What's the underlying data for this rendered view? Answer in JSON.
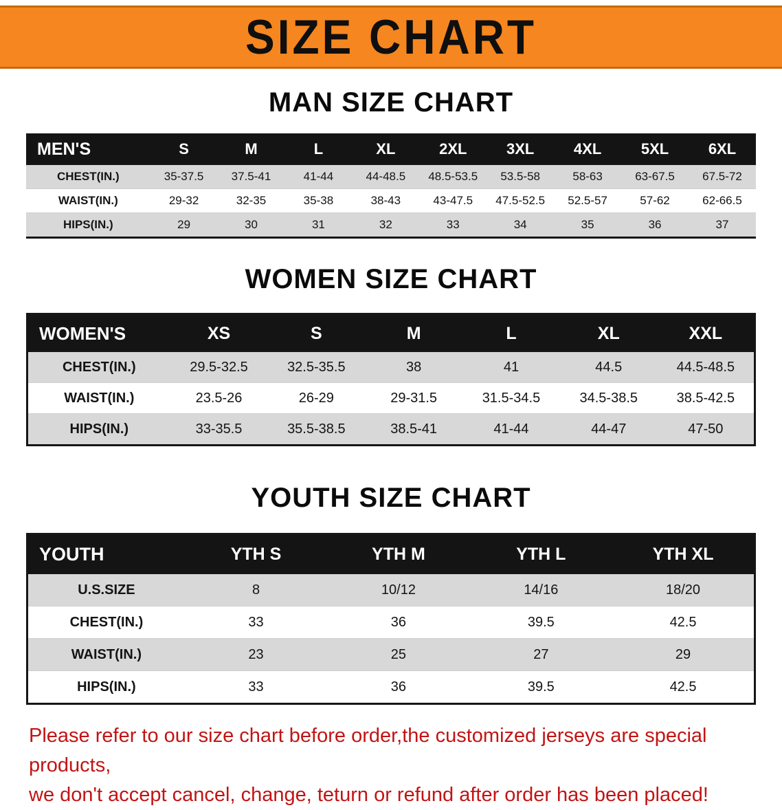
{
  "banner": {
    "title": "SIZE CHART"
  },
  "headings": {
    "men": "MAN SIZE CHART",
    "women": "WOMEN SIZE CHART",
    "youth": "YOUTH SIZE CHART"
  },
  "tables": {
    "men": {
      "header": [
        "MEN'S",
        "S",
        "M",
        "L",
        "XL",
        "2XL",
        "3XL",
        "4XL",
        "5XL",
        "6XL"
      ],
      "rows": [
        [
          "CHEST(IN.)",
          "35-37.5",
          "37.5-41",
          "41-44",
          "44-48.5",
          "48.5-53.5",
          "53.5-58",
          "58-63",
          "63-67.5",
          "67.5-72"
        ],
        [
          "WAIST(IN.)",
          "29-32",
          "32-35",
          "35-38",
          "38-43",
          "43-47.5",
          "47.5-52.5",
          "52.5-57",
          "57-62",
          "62-66.5"
        ],
        [
          "HIPS(IN.)",
          "29",
          "30",
          "31",
          "32",
          "33",
          "34",
          "35",
          "36",
          "37"
        ]
      ]
    },
    "women": {
      "header": [
        "WOMEN'S",
        "XS",
        "S",
        "M",
        "L",
        "XL",
        "XXL"
      ],
      "rows": [
        [
          "CHEST(IN.)",
          "29.5-32.5",
          "32.5-35.5",
          "38",
          "41",
          "44.5",
          "44.5-48.5"
        ],
        [
          "WAIST(IN.)",
          "23.5-26",
          "26-29",
          "29-31.5",
          "31.5-34.5",
          "34.5-38.5",
          "38.5-42.5"
        ],
        [
          "HIPS(IN.)",
          "33-35.5",
          "35.5-38.5",
          "38.5-41",
          "41-44",
          "44-47",
          "47-50"
        ]
      ]
    },
    "youth": {
      "header": [
        "YOUTH",
        "YTH S",
        "YTH M",
        "YTH L",
        "YTH XL"
      ],
      "rows": [
        [
          "U.S.SIZE",
          "8",
          "10/12",
          "14/16",
          "18/20"
        ],
        [
          "CHEST(IN.)",
          "33",
          "36",
          "39.5",
          "42.5"
        ],
        [
          "WAIST(IN.)",
          "23",
          "25",
          "27",
          "29"
        ],
        [
          "HIPS(IN.)",
          "33",
          "36",
          "39.5",
          "42.5"
        ]
      ]
    }
  },
  "footer": {
    "line1": "Please refer to our size chart before order,the customized jerseys are special products,",
    "line2": "we don't accept cancel, change, teturn or refund after order has been placed!"
  },
  "colors": {
    "banner_bg": "#F6861F",
    "banner_edge": "#C9680E",
    "header_bg": "#141414",
    "row_alt_bg": "#D8D8D8",
    "footer_text": "#C21414"
  }
}
